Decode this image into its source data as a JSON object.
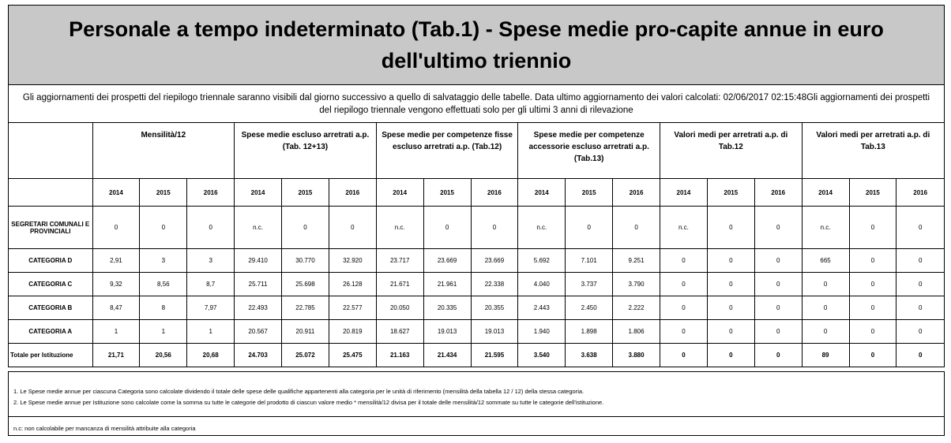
{
  "title": "Personale a tempo indeterminato (Tab.1) - Spese medie pro-capite annue in euro dell'ultimo triennio",
  "info": "Gli aggiornamenti dei prospetti del riepilogo triennale saranno visibili dal giorno successivo a quello di salvataggio delle tabelle. Data ultimo aggiornamento dei valori calcolati: 02/06/2017 02:15:48Gli aggiornamenti dei prospetti del riepilogo triennale vengono effettuati solo per gli ultimi 3 anni di rilevazione",
  "groups": [
    "Mensilità/12",
    "Spese medie escluso arretrati a.p. (Tab. 12+13)",
    "Spese medie per competenze fisse escluso arretrati a.p. (Tab.12)",
    "Spese medie per competenze accessorie escluso arretrati a.p. (Tab.13)",
    "Valori medi per arretrati a.p. di Tab.12",
    "Valori medi per arretrati a.p. di Tab.13"
  ],
  "years": [
    "2014",
    "2015",
    "2016"
  ],
  "rows": [
    {
      "label": "SEGRETARI COMUNALI E PROVINCIALI",
      "values": [
        "0",
        "0",
        "0",
        "n.c.",
        "0",
        "0",
        "n.c.",
        "0",
        "0",
        "n.c.",
        "0",
        "0",
        "n.c.",
        "0",
        "0",
        "n.c.",
        "0",
        "0"
      ]
    },
    {
      "label": "CATEGORIA D",
      "values": [
        "2,91",
        "3",
        "3",
        "29.410",
        "30.770",
        "32.920",
        "23.717",
        "23.669",
        "23.669",
        "5.692",
        "7.101",
        "9.251",
        "0",
        "0",
        "0",
        "665",
        "0",
        "0"
      ]
    },
    {
      "label": "CATEGORIA C",
      "values": [
        "9,32",
        "8,56",
        "8,7",
        "25.711",
        "25.698",
        "26.128",
        "21.671",
        "21.961",
        "22.338",
        "4.040",
        "3.737",
        "3.790",
        "0",
        "0",
        "0",
        "0",
        "0",
        "0"
      ]
    },
    {
      "label": "CATEGORIA B",
      "values": [
        "8,47",
        "8",
        "7,97",
        "22.493",
        "22.785",
        "22.577",
        "20.050",
        "20.335",
        "20.355",
        "2.443",
        "2.450",
        "2.222",
        "0",
        "0",
        "0",
        "0",
        "0",
        "0"
      ]
    },
    {
      "label": "CATEGORIA A",
      "values": [
        "1",
        "1",
        "1",
        "20.567",
        "20.911",
        "20.819",
        "18.627",
        "19.013",
        "19.013",
        "1.940",
        "1.898",
        "1.806",
        "0",
        "0",
        "0",
        "0",
        "0",
        "0"
      ]
    },
    {
      "label": "Totale per Istituzione",
      "values": [
        "21,71",
        "20,56",
        "20,68",
        "24.703",
        "25.072",
        "25.475",
        "21.163",
        "21.434",
        "21.595",
        "3.540",
        "3.638",
        "3.880",
        "0",
        "0",
        "0",
        "89",
        "0",
        "0"
      ]
    }
  ],
  "notes": [
    "1. Le Spese medie annue per ciascuna Categoria sono calcolate dividendo il totale delle spese delle qualifiche appartenenti alla categoria per le unità di riferimento (mensilità della tabella 12 / 12) della stessa categoria.",
    "2. Le Spese medie annue per Istituzione sono calcolate come la somma su tutte le categorie del prodotto di ciascun valore medio * mensilità/12 divisa per il totale delle mensilità/12 sommate su tutte le categorie dell'istituzione."
  ],
  "nc_note": "n.c: non calcolabile per mancanza di mensilità attribuite alla categoria"
}
